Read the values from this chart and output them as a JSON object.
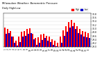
{
  "title": "Milwaukee Weather: Barometric Pressure",
  "subtitle": "Daily High/Low",
  "high_color": "#ff0000",
  "low_color": "#0000cc",
  "background_color": "#ffffff",
  "ylim": [
    29.0,
    30.85
  ],
  "ytick_vals": [
    29.0,
    29.2,
    29.4,
    29.6,
    29.8,
    30.0,
    30.2,
    30.4,
    30.6,
    30.8
  ],
  "ytick_labels": [
    "29.0",
    "29.2",
    "29.4",
    "29.6",
    "29.8",
    "30.0",
    "30.2",
    "30.4",
    "30.6",
    "30.8"
  ],
  "days": [
    1,
    2,
    3,
    4,
    5,
    6,
    7,
    8,
    9,
    10,
    11,
    12,
    13,
    14,
    15,
    16,
    17,
    18,
    19,
    20,
    21,
    22,
    23,
    24,
    25,
    26,
    27,
    28,
    29,
    30,
    31
  ],
  "highs": [
    30.05,
    30.0,
    29.88,
    29.58,
    29.32,
    29.55,
    29.82,
    29.87,
    29.97,
    30.02,
    29.72,
    29.47,
    29.52,
    29.67,
    29.72,
    29.62,
    29.57,
    29.42,
    29.32,
    29.22,
    29.57,
    29.92,
    30.12,
    30.37,
    30.47,
    30.32,
    30.12,
    29.97,
    29.87,
    29.82,
    29.77
  ],
  "lows": [
    29.72,
    29.77,
    29.57,
    29.22,
    29.07,
    29.27,
    29.57,
    29.62,
    29.72,
    29.77,
    29.42,
    29.12,
    29.22,
    29.37,
    29.47,
    29.32,
    29.27,
    29.12,
    29.02,
    28.92,
    29.22,
    29.62,
    29.82,
    30.07,
    30.12,
    29.97,
    29.77,
    29.67,
    29.57,
    29.52,
    29.47
  ],
  "legend_high": "High",
  "legend_low": "Low",
  "dpi": 100,
  "figw": 1.6,
  "figh": 0.87
}
